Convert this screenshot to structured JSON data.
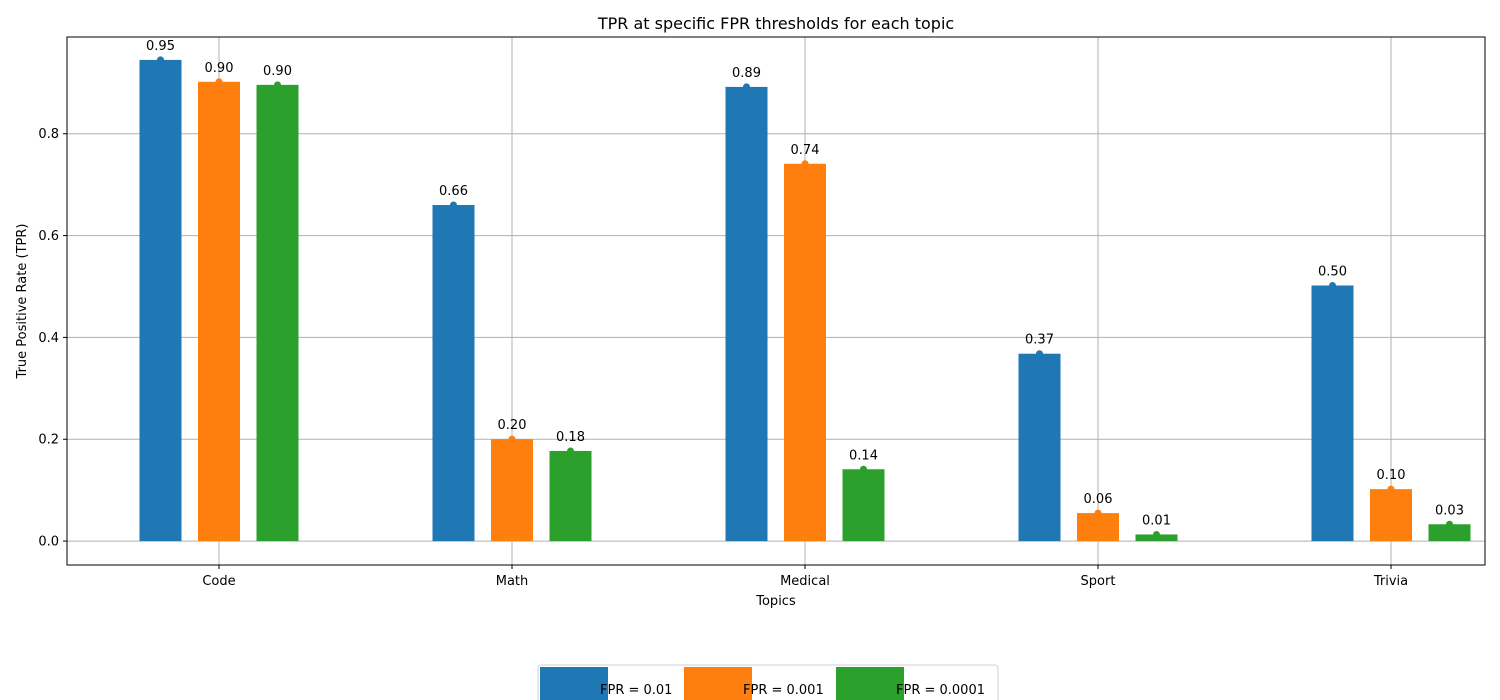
{
  "chart_data": {
    "type": "bar",
    "title": "TPR at specific FPR thresholds for each topic",
    "xlabel": "Topics",
    "ylabel": "True Positive Rate (TPR)",
    "categories": [
      "Code",
      "Math",
      "Medical",
      "Sport",
      "Trivia"
    ],
    "series": [
      {
        "name": "FPR = 0.01",
        "color": "#1f77b4",
        "values": [
          0.945,
          0.66,
          0.892,
          0.368,
          0.502
        ],
        "labels": [
          "0.95",
          "0.66",
          "0.89",
          "0.37",
          "0.50"
        ]
      },
      {
        "name": "FPR = 0.001",
        "color": "#ff7f0e",
        "values": [
          0.902,
          0.2,
          0.741,
          0.055,
          0.102
        ],
        "labels": [
          "0.90",
          "0.20",
          "0.74",
          "0.06",
          "0.10"
        ]
      },
      {
        "name": "FPR = 0.0001",
        "color": "#2ca02c",
        "values": [
          0.896,
          0.177,
          0.141,
          0.013,
          0.033
        ],
        "labels": [
          "0.90",
          "0.18",
          "0.14",
          "0.01",
          "0.03"
        ]
      }
    ],
    "ylim": [
      -0.047,
      0.99
    ],
    "yticks": [
      0.0,
      0.2,
      0.4,
      0.6,
      0.8
    ],
    "ytick_labels": [
      "0.0",
      "0.2",
      "0.4",
      "0.6",
      "0.8"
    ],
    "grid": true,
    "legend_position": "bottom-center"
  }
}
